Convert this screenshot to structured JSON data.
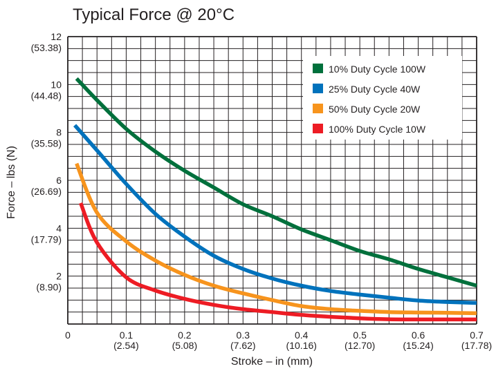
{
  "chart_data": {
    "type": "line",
    "title": "Typical Force @ 20°C",
    "xlabel": "Stroke – in (mm)",
    "ylabel": "Force – lbs (N)",
    "xlim": [
      0,
      0.7
    ],
    "ylim": [
      0,
      12
    ],
    "grid": true,
    "legend_position": "top-right",
    "x_ticks": [
      {
        "value": 0,
        "label": "0",
        "sub": ""
      },
      {
        "value": 0.1,
        "label": "0.1",
        "sub": "(2.54)"
      },
      {
        "value": 0.2,
        "label": "0.2",
        "sub": "(5.08)"
      },
      {
        "value": 0.3,
        "label": "0.3",
        "sub": "(7.62)"
      },
      {
        "value": 0.4,
        "label": "0.4",
        "sub": "(10.16)"
      },
      {
        "value": 0.5,
        "label": "0.5",
        "sub": "(12.70)"
      },
      {
        "value": 0.6,
        "label": "0.6",
        "sub": "(15.24)"
      },
      {
        "value": 0.7,
        "label": "0.7",
        "sub": "(17.78)"
      }
    ],
    "y_ticks": [
      {
        "value": 2,
        "label": "2",
        "sub": "(8.90)"
      },
      {
        "value": 4,
        "label": "4",
        "sub": "(17.79)"
      },
      {
        "value": 6,
        "label": "6",
        "sub": "(26.69)"
      },
      {
        "value": 8,
        "label": "8",
        "sub": "(35.58)"
      },
      {
        "value": 10,
        "label": "10",
        "sub": "(44.48)"
      },
      {
        "value": 12,
        "label": "12",
        "sub": "(53.38)"
      }
    ],
    "series": [
      {
        "name": "10% Duty Cycle 100W",
        "color": "#00703c",
        "points": [
          [
            0.015,
            10.25
          ],
          [
            0.05,
            9.35
          ],
          [
            0.1,
            8.15
          ],
          [
            0.15,
            7.2
          ],
          [
            0.2,
            6.4
          ],
          [
            0.25,
            5.7
          ],
          [
            0.3,
            5.0
          ],
          [
            0.35,
            4.5
          ],
          [
            0.4,
            3.95
          ],
          [
            0.45,
            3.5
          ],
          [
            0.5,
            3.05
          ],
          [
            0.55,
            2.7
          ],
          [
            0.6,
            2.3
          ],
          [
            0.65,
            1.95
          ],
          [
            0.7,
            1.6
          ]
        ]
      },
      {
        "name": "25% Duty Cycle 40W",
        "color": "#0072bc",
        "points": [
          [
            0.012,
            8.3
          ],
          [
            0.05,
            7.25
          ],
          [
            0.1,
            5.85
          ],
          [
            0.15,
            4.6
          ],
          [
            0.2,
            3.65
          ],
          [
            0.25,
            2.85
          ],
          [
            0.3,
            2.3
          ],
          [
            0.35,
            1.9
          ],
          [
            0.4,
            1.6
          ],
          [
            0.45,
            1.38
          ],
          [
            0.5,
            1.23
          ],
          [
            0.55,
            1.1
          ],
          [
            0.6,
            0.98
          ],
          [
            0.65,
            0.92
          ],
          [
            0.7,
            0.88
          ]
        ]
      },
      {
        "name": "50% Duty Cycle 20W",
        "color": "#f7941d",
        "points": [
          [
            0.015,
            6.7
          ],
          [
            0.05,
            4.65
          ],
          [
            0.1,
            3.45
          ],
          [
            0.15,
            2.65
          ],
          [
            0.2,
            2.05
          ],
          [
            0.25,
            1.6
          ],
          [
            0.3,
            1.28
          ],
          [
            0.35,
            1.0
          ],
          [
            0.4,
            0.75
          ],
          [
            0.45,
            0.62
          ],
          [
            0.5,
            0.55
          ],
          [
            0.55,
            0.5
          ],
          [
            0.6,
            0.48
          ],
          [
            0.65,
            0.47
          ],
          [
            0.7,
            0.45
          ]
        ]
      },
      {
        "name": "100% Duty Cycle 10W",
        "color": "#ed1c24",
        "points": [
          [
            0.022,
            5.05
          ],
          [
            0.05,
            3.4
          ],
          [
            0.1,
            1.95
          ],
          [
            0.15,
            1.4
          ],
          [
            0.2,
            1.05
          ],
          [
            0.25,
            0.8
          ],
          [
            0.3,
            0.62
          ],
          [
            0.35,
            0.5
          ],
          [
            0.4,
            0.38
          ],
          [
            0.45,
            0.3
          ],
          [
            0.5,
            0.24
          ],
          [
            0.55,
            0.2
          ],
          [
            0.6,
            0.19
          ],
          [
            0.65,
            0.19
          ],
          [
            0.7,
            0.19
          ]
        ]
      }
    ]
  }
}
